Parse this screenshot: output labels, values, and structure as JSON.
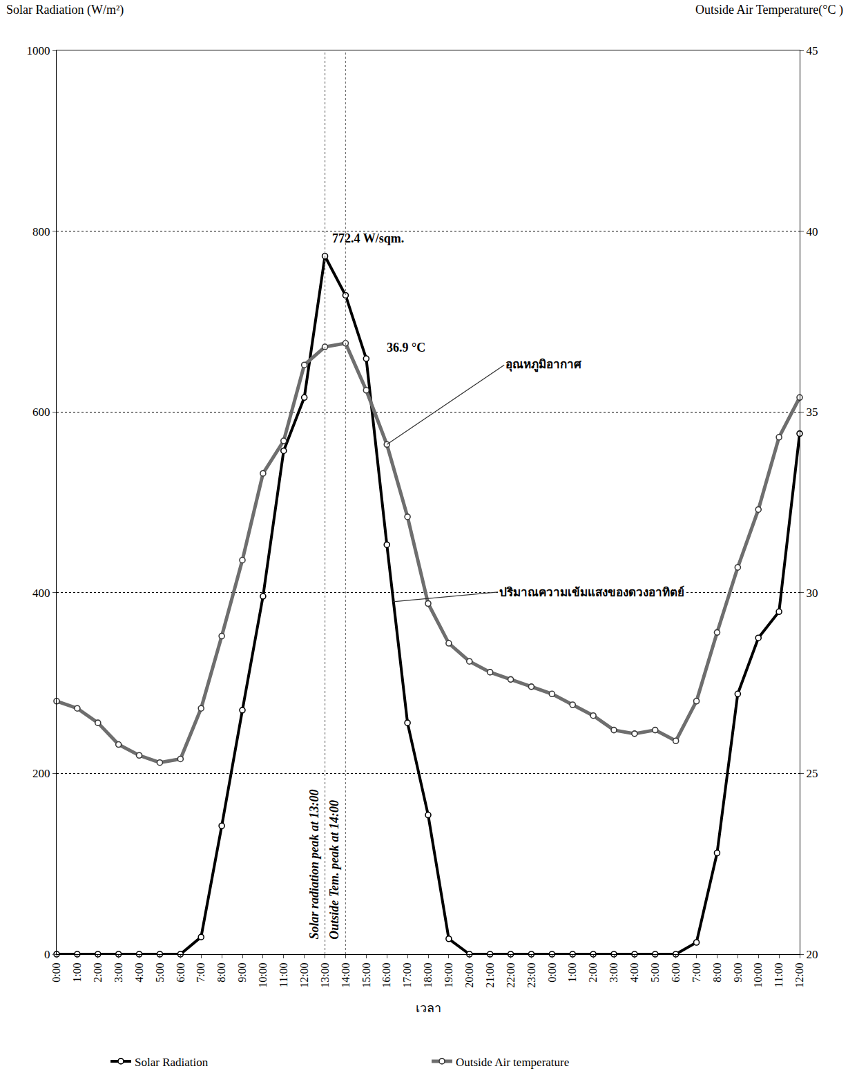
{
  "chart_data": {
    "type": "line",
    "y_label": "Solar Radiation (W/m²)",
    "y2_label": "Outside Air Temperature(°C )",
    "x_label": "เวลา",
    "categories": [
      "0:00",
      "1:00",
      "2:00",
      "3:00",
      "4:00",
      "5:00",
      "6:00",
      "7:00",
      "8:00",
      "9:00",
      "10:00",
      "11:00",
      "12:00",
      "13:00",
      "14:00",
      "15:00",
      "16:00",
      "17:00",
      "18:00",
      "19:00",
      "20:00",
      "21:00",
      "22:00",
      "23:00",
      "0:00",
      "1:00",
      "2:00",
      "3:00",
      "4:00",
      "5:00",
      "6:00",
      "7:00",
      "8:00",
      "9:00",
      "10:00",
      "11:00",
      "12:00"
    ],
    "series": [
      {
        "name": "Solar Radiation",
        "color": "#000000",
        "marker": "circle",
        "line_style": "solid",
        "values": [
          0,
          0,
          0,
          0,
          0,
          0,
          0,
          19,
          142,
          270,
          396,
          557,
          616,
          772.4,
          729,
          659,
          453,
          256,
          154,
          17,
          0,
          0,
          0,
          0,
          0,
          0,
          0,
          0,
          0,
          0,
          0,
          13,
          112,
          288,
          350,
          379,
          576
        ]
      },
      {
        "name": "Outside Air temperature",
        "color": "#6e6e6e",
        "marker": "circle",
        "line_style": "solid",
        "axis": "y2",
        "values": [
          27.0,
          26.8,
          26.4,
          25.8,
          25.5,
          25.3,
          25.4,
          26.8,
          28.8,
          30.9,
          33.3,
          34.2,
          36.3,
          36.8,
          36.9,
          35.6,
          34.1,
          32.1,
          29.7,
          28.6,
          28.1,
          27.8,
          27.6,
          27.4,
          27.2,
          26.9,
          26.6,
          26.2,
          26.1,
          26.2,
          25.9,
          27.0,
          28.9,
          30.7,
          32.3,
          34.3,
          35.4
        ]
      }
    ],
    "ylim": [
      0,
      1000
    ],
    "yticks": [
      0,
      200,
      400,
      600,
      800,
      1000
    ],
    "y2lim": [
      20,
      45
    ],
    "y2ticks": [
      20,
      25,
      30,
      35,
      40,
      45
    ],
    "grid": true,
    "legend": "bottom",
    "peak_labels": [
      {
        "text": "772.4 W/sqm.",
        "x": 13,
        "y": 772.4
      },
      {
        "text": "36.9 °C",
        "x": 14,
        "y": 36.9,
        "axis": "y2"
      }
    ],
    "vertical_lines": [
      {
        "x": 13,
        "text": "Solar radiation peak at 13:00",
        "line_style": "dot"
      },
      {
        "x": 14,
        "text": "Outside Tem. peak at 14:00",
        "line_style": "dot"
      }
    ],
    "callouts": [
      {
        "text": "อุณหภูมิอากาศ",
        "x": 16,
        "y": 34.1,
        "axis": "y2"
      },
      {
        "text": "ปริมาณความเข้มแสงของดวงอาทิตย์",
        "x": 16.3,
        "y": 390
      }
    ]
  }
}
